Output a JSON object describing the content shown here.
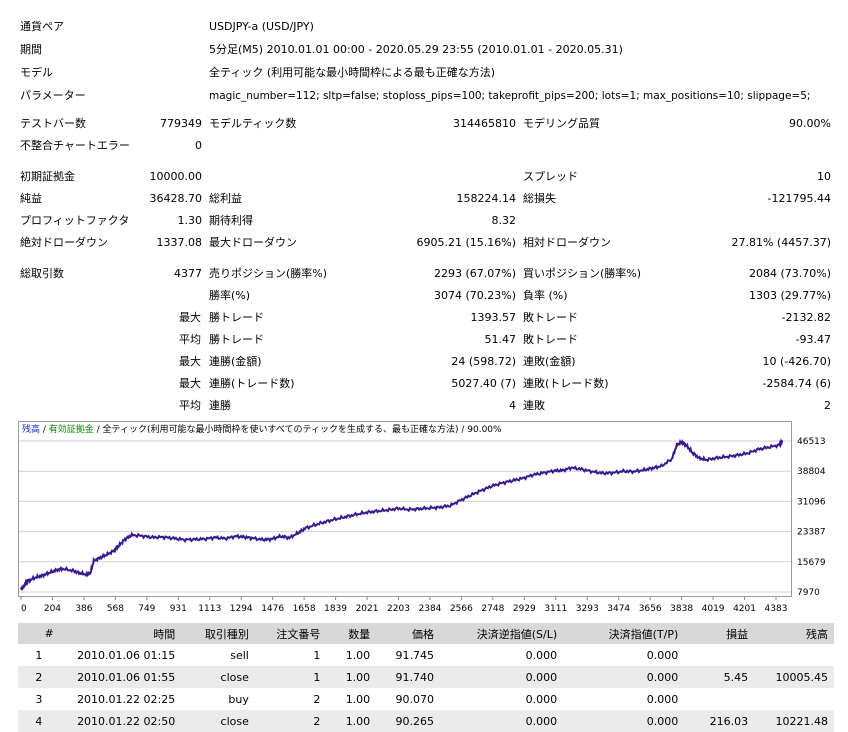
{
  "header": {
    "symbol_label": "通貨ペア",
    "symbol_value": "USDJPY-a (USD/JPY)",
    "period_label": "期間",
    "period_value": "5分足(M5) 2010.01.01 00:00 - 2020.05.29 23:55 (2010.01.01 - 2020.05.31)",
    "model_label": "モデル",
    "model_value": "全ティック (利用可能な最小時間枠による最も正確な方法)",
    "params_label": "パラメーター",
    "params_value": "magic_number=112; sltp=false; stoploss_pips=100; takeprofit_pips=200; lots=1; max_positions=10; slippage=5;"
  },
  "stats": {
    "bars_label": "テストバー数",
    "bars_value": "779349",
    "ticks_label": "モデルティック数",
    "ticks_value": "314465810",
    "quality_label": "モデリング品質",
    "quality_value": "90.00%",
    "mismatch_label": "不整合チャートエラー",
    "mismatch_value": "0",
    "deposit_label": "初期証拠金",
    "deposit_value": "10000.00",
    "spread_label": "スプレッド",
    "spread_value": "10",
    "net_label": "純益",
    "net_value": "36428.70",
    "gross_profit_label": "総利益",
    "gross_profit_value": "158224.14",
    "gross_loss_label": "総損失",
    "gross_loss_value": "-121795.44",
    "pf_label": "プロフィットファクタ",
    "pf_value": "1.30",
    "expected_label": "期待利得",
    "expected_value": "8.32",
    "abs_dd_label": "絶対ドローダウン",
    "abs_dd_value": "1337.08",
    "max_dd_label": "最大ドローダウン",
    "max_dd_value": "6905.21 (15.16%)",
    "rel_dd_label": "相対ドローダウン",
    "rel_dd_value": "27.81% (4457.37)",
    "total_trades_label": "総取引数",
    "total_trades_value": "4377",
    "short_label": "売りポジション(勝率%)",
    "short_value": "2293 (67.07%)",
    "long_label": "買いポジション(勝率%)",
    "long_value": "2084 (73.70%)",
    "win_label": "勝率(%)",
    "win_value": "3074 (70.23%)",
    "loss_label": "負率 (%)",
    "loss_value": "1303 (29.77%)",
    "max": "最大",
    "avg": "平均",
    "largest_win_label": "勝トレード",
    "largest_win_value": "1393.57",
    "largest_loss_label": "敗トレード",
    "largest_loss_value": "-2132.82",
    "avg_win_label": "勝トレード",
    "avg_win_value": "51.47",
    "avg_loss_label": "敗トレード",
    "avg_loss_value": "-93.47",
    "max_cons_win_label": "連勝(金額)",
    "max_cons_win_value": "24 (598.72)",
    "max_cons_loss_label": "連敗(金額)",
    "max_cons_loss_value": "10 (-426.70)",
    "max_cons_profit_label": "連勝(トレード数)",
    "max_cons_profit_value": "5027.40 (7)",
    "max_cons_lossamt_label": "連敗(トレード数)",
    "max_cons_lossamt_value": "-2584.74 (6)",
    "avg_cons_win_label": "連勝",
    "avg_cons_win_value": "4",
    "avg_cons_loss_label": "連敗",
    "avg_cons_loss_value": "2"
  },
  "chart_data": {
    "type": "line",
    "legend": {
      "balance": "残高",
      "sep1": " / ",
      "equity": "有効証拠金",
      "rest": " / 全ティック(利用可能な最小時間枠を使いすべてのティックを生成する、最も正確な方法) / 90.00%"
    },
    "colors": {
      "line": "#3a1a8f",
      "balance_text": "#1f28c7",
      "equity_text": "#0a8a0a",
      "grid": "#d0d0d0"
    },
    "x_ticks": [
      "0",
      "204",
      "386",
      "568",
      "749",
      "931",
      "1113",
      "1294",
      "1476",
      "1658",
      "1839",
      "2021",
      "2203",
      "2384",
      "2566",
      "2748",
      "2929",
      "3111",
      "3293",
      "3474",
      "3656",
      "3838",
      "4019",
      "4201",
      "4383"
    ],
    "y_ticks": [
      "46513",
      "38804",
      "31096",
      "23387",
      "15679",
      "7970"
    ],
    "xlim": [
      0,
      4420
    ],
    "ylim": [
      7970,
      46513
    ],
    "points": [
      [
        0,
        8500
      ],
      [
        20,
        9800
      ],
      [
        40,
        10800
      ],
      [
        80,
        11600
      ],
      [
        120,
        12100
      ],
      [
        160,
        12800
      ],
      [
        200,
        13500
      ],
      [
        240,
        13900
      ],
      [
        300,
        13400
      ],
      [
        340,
        12800
      ],
      [
        380,
        12400
      ],
      [
        400,
        12700
      ],
      [
        420,
        15900
      ],
      [
        460,
        16800
      ],
      [
        500,
        17600
      ],
      [
        540,
        18600
      ],
      [
        570,
        20000
      ],
      [
        600,
        21400
      ],
      [
        640,
        22500
      ],
      [
        700,
        22300
      ],
      [
        760,
        21900
      ],
      [
        820,
        22000
      ],
      [
        880,
        21700
      ],
      [
        940,
        21300
      ],
      [
        1000,
        21400
      ],
      [
        1060,
        21500
      ],
      [
        1120,
        21900
      ],
      [
        1180,
        21600
      ],
      [
        1240,
        22200
      ],
      [
        1290,
        22000
      ],
      [
        1340,
        21700
      ],
      [
        1400,
        21300
      ],
      [
        1450,
        21500
      ],
      [
        1500,
        22200
      ],
      [
        1550,
        21800
      ],
      [
        1600,
        23000
      ],
      [
        1640,
        24200
      ],
      [
        1700,
        25100
      ],
      [
        1760,
        25900
      ],
      [
        1820,
        26600
      ],
      [
        1880,
        27200
      ],
      [
        1940,
        27800
      ],
      [
        2000,
        28300
      ],
      [
        2060,
        28600
      ],
      [
        2120,
        28900
      ],
      [
        2180,
        29300
      ],
      [
        2240,
        29000
      ],
      [
        2300,
        29200
      ],
      [
        2360,
        29400
      ],
      [
        2420,
        29600
      ],
      [
        2480,
        30000
      ],
      [
        2540,
        31400
      ],
      [
        2600,
        32700
      ],
      [
        2660,
        33900
      ],
      [
        2720,
        35000
      ],
      [
        2780,
        35800
      ],
      [
        2840,
        36400
      ],
      [
        2900,
        37000
      ],
      [
        2960,
        37900
      ],
      [
        3020,
        38400
      ],
      [
        3080,
        38900
      ],
      [
        3130,
        39000
      ],
      [
        3180,
        39700
      ],
      [
        3240,
        39300
      ],
      [
        3300,
        38700
      ],
      [
        3360,
        38300
      ],
      [
        3420,
        38400
      ],
      [
        3480,
        38800
      ],
      [
        3540,
        38700
      ],
      [
        3600,
        39100
      ],
      [
        3650,
        39600
      ],
      [
        3700,
        40100
      ],
      [
        3760,
        41900
      ],
      [
        3790,
        45600
      ],
      [
        3820,
        46200
      ],
      [
        3850,
        45100
      ],
      [
        3880,
        43500
      ],
      [
        3920,
        42100
      ],
      [
        3960,
        41700
      ],
      [
        4020,
        42200
      ],
      [
        4080,
        42500
      ],
      [
        4140,
        42900
      ],
      [
        4200,
        43400
      ],
      [
        4260,
        44400
      ],
      [
        4320,
        44900
      ],
      [
        4380,
        45500
      ],
      [
        4400,
        46500
      ]
    ]
  },
  "table": {
    "headers": [
      "#",
      "時間",
      "取引種別",
      "注文番号",
      "数量",
      "価格",
      "決済逆指値(S/L)",
      "決済指値(T/P)",
      "損益",
      "残高"
    ],
    "rows": [
      [
        "1",
        "2010.01.06 01:15",
        "sell",
        "1",
        "1.00",
        "91.745",
        "0.000",
        "0.000",
        "",
        ""
      ],
      [
        "2",
        "2010.01.06 01:55",
        "close",
        "1",
        "1.00",
        "91.740",
        "0.000",
        "0.000",
        "5.45",
        "10005.45"
      ],
      [
        "3",
        "2010.01.22 02:25",
        "buy",
        "2",
        "1.00",
        "90.070",
        "0.000",
        "0.000",
        "",
        ""
      ],
      [
        "4",
        "2010.01.22 02:50",
        "close",
        "2",
        "1.00",
        "90.265",
        "0.000",
        "0.000",
        "216.03",
        "10221.48"
      ]
    ]
  }
}
